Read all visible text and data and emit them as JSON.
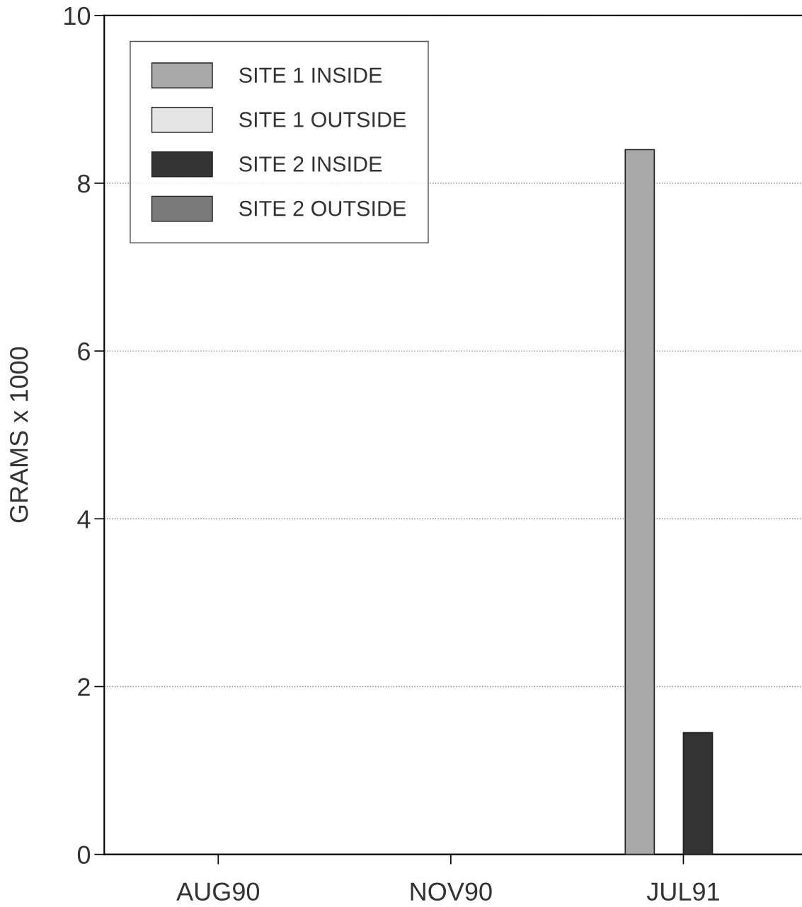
{
  "chart_data": {
    "type": "bar",
    "categories": [
      "AUG90",
      "NOV90",
      "JUL91"
    ],
    "ylabel": "GRAMS x 1000",
    "series": [
      {
        "name": "SITE 1 INSIDE",
        "color": "#a8a8a8",
        "values": [
          0,
          0,
          8.4
        ]
      },
      {
        "name": "SITE 1 OUTSIDE",
        "color": "#e4e4e4",
        "values": [
          0,
          0,
          0
        ]
      },
      {
        "name": "SITE 2 INSIDE",
        "color": "#333333",
        "values": [
          0,
          0,
          1.45
        ]
      },
      {
        "name": "SITE 2 OUTSIDE",
        "color": "#7a7a7a",
        "values": [
          0,
          0,
          0
        ]
      }
    ],
    "ylim": [
      0,
      10
    ],
    "yticks": [
      0,
      2,
      4,
      6,
      8,
      10
    ],
    "grid": "y",
    "legend": "top left"
  }
}
